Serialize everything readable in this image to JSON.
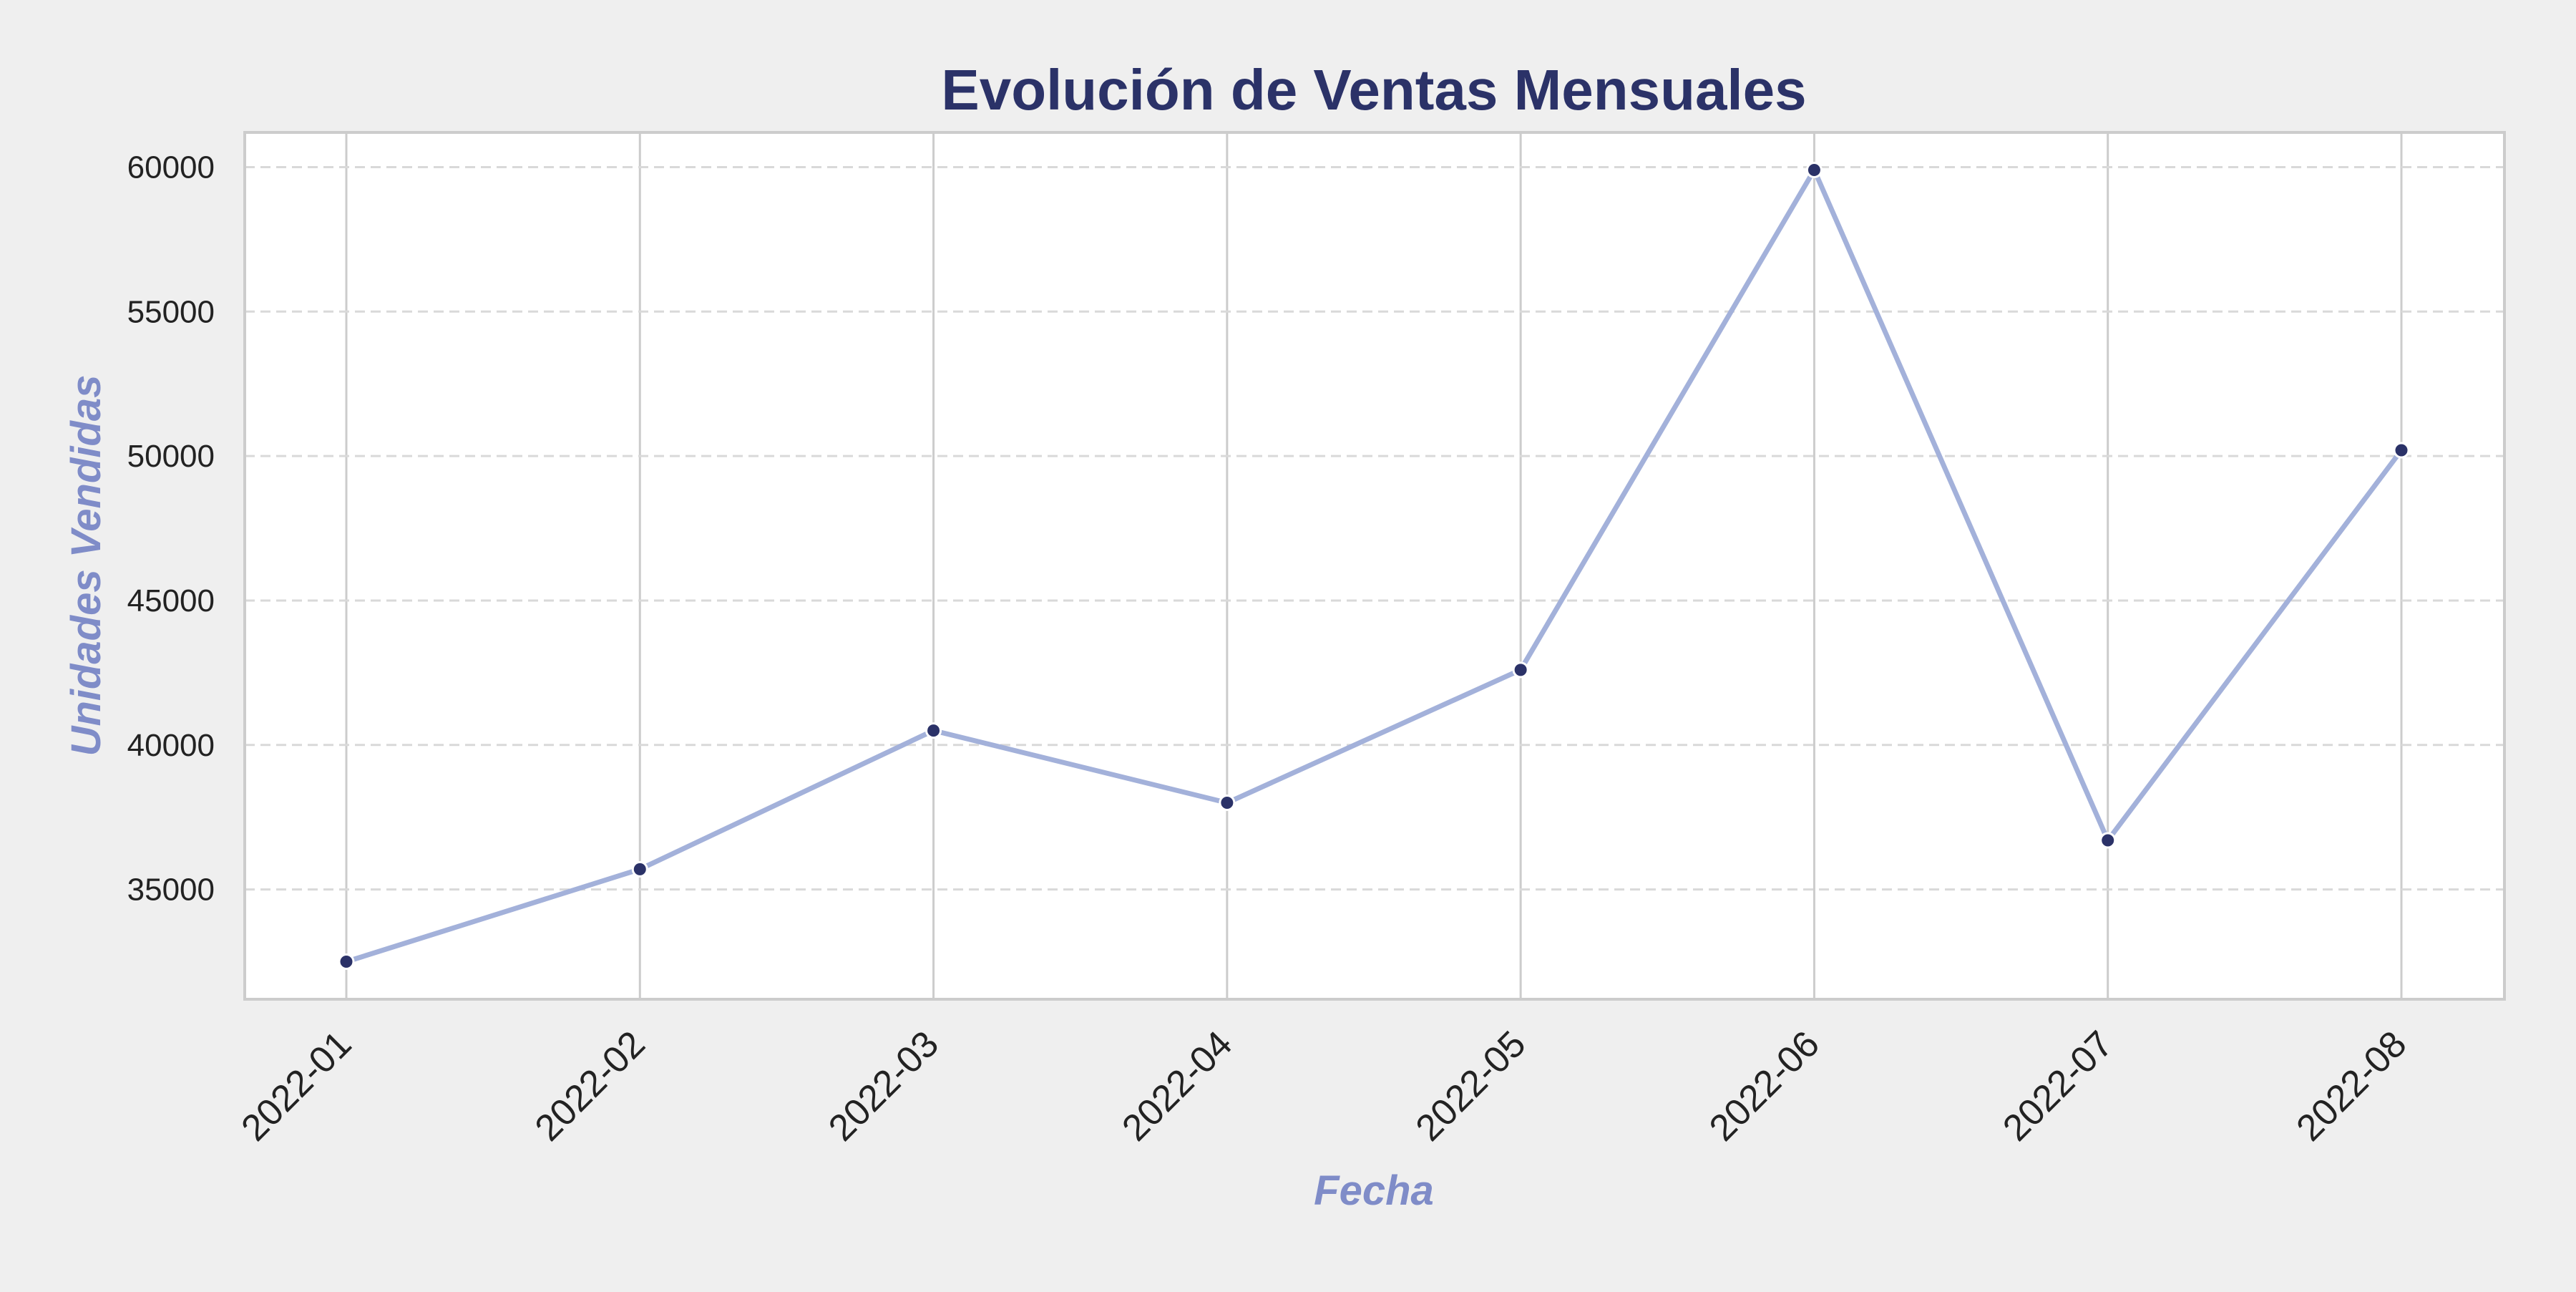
{
  "colors": {
    "background": "#efefef",
    "plot_background": "#ffffff",
    "title": "#2b3268",
    "axis_label": "#7f8cc8",
    "tick_label": "#222222",
    "line": "#a3b1da",
    "marker": "#2b3268",
    "marker_edge": "#ffffff",
    "grid_vertical": "#cccccc",
    "grid_horizontal": "#d9d9d9",
    "frame": "#cccccc"
  },
  "chart_data": {
    "type": "line",
    "title": "Evolución de Ventas Mensuales",
    "xlabel": "Fecha",
    "ylabel": "Unidades Vendidas",
    "categories": [
      "2022-01",
      "2022-02",
      "2022-03",
      "2022-04",
      "2022-05",
      "2022-06",
      "2022-07",
      "2022-08"
    ],
    "series": [
      {
        "values": [
          32500,
          35700,
          40500,
          38000,
          42600,
          59900,
          36700,
          50200
        ]
      }
    ],
    "ylim": [
      31200,
      61200
    ],
    "yticks": [
      35000,
      40000,
      45000,
      50000,
      55000,
      60000
    ],
    "ytick_labels": [
      "35000",
      "40000",
      "45000",
      "50000",
      "55000",
      "60000"
    ],
    "grid": {
      "vertical": "solid",
      "horizontal": "dashed"
    },
    "markers": true,
    "legend": "none"
  }
}
